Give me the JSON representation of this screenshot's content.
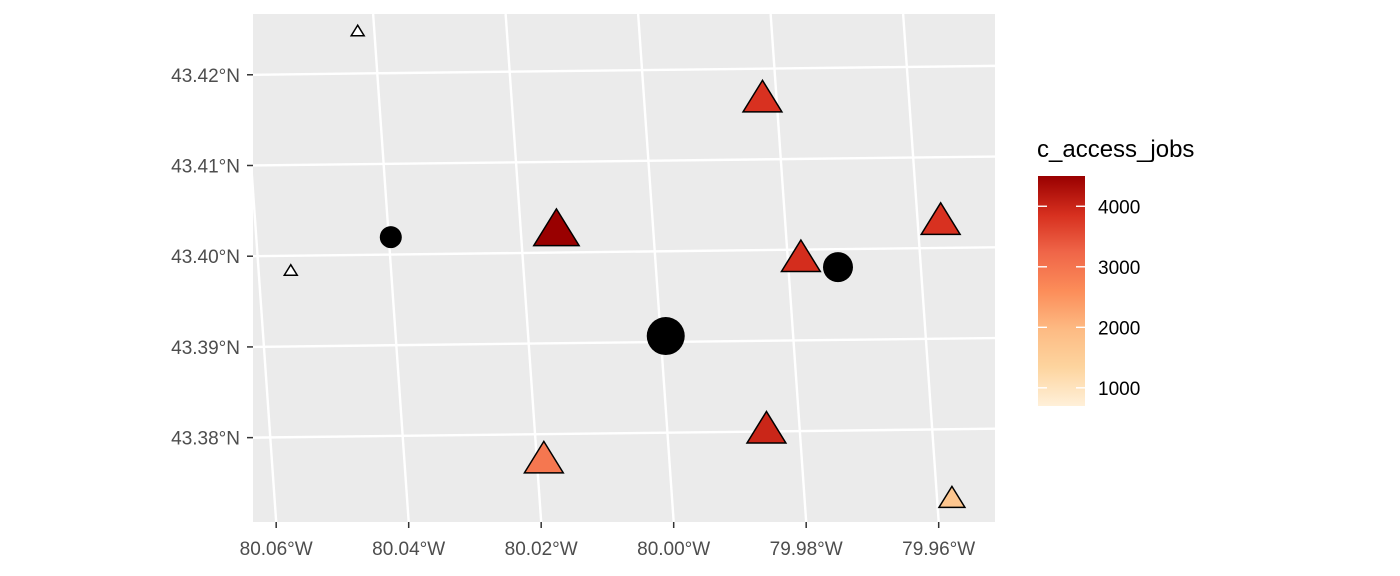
{
  "chart_data": {
    "type": "scatter",
    "title": "",
    "xlabel": "",
    "ylabel": "",
    "xlim": [
      -80.0635,
      -79.9515
    ],
    "ylim": [
      43.3707,
      43.4267
    ],
    "grid": true,
    "x_ticks": [
      -80.06,
      -80.04,
      -80.02,
      -80.0,
      -79.98,
      -79.96
    ],
    "x_tick_labels": [
      "80.06°W",
      "80.04°W",
      "80.02°W",
      "80.00°W",
      "79.98°W",
      "79.96°W"
    ],
    "y_ticks": [
      43.38,
      43.39,
      43.4,
      43.41,
      43.42
    ],
    "y_tick_labels": [
      "43.38°N",
      "43.39°N",
      "43.40°N",
      "43.41°N",
      "43.42°N"
    ],
    "legend": {
      "title": "c_access_jobs",
      "position": "right",
      "range": [
        700,
        4500
      ],
      "ticks": [
        1000,
        2000,
        3000,
        4000
      ],
      "tick_labels": [
        "1000",
        "2000",
        "3000",
        "4000"
      ]
    },
    "triangles": [
      {
        "x": -80.0578,
        "y": 43.3984,
        "size": "small",
        "value": null
      },
      {
        "x": -80.0477,
        "y": 43.4248,
        "size": "small",
        "value": null
      },
      {
        "x": -80.0177,
        "y": 43.4029,
        "size": "large",
        "value": 4500
      },
      {
        "x": -80.0196,
        "y": 43.3776,
        "size": "medium",
        "value": 2950
      },
      {
        "x": -79.9866,
        "y": 43.4174,
        "size": "medium",
        "value": 3850
      },
      {
        "x": -79.9808,
        "y": 43.3998,
        "size": "medium",
        "value": 3900
      },
      {
        "x": -79.986,
        "y": 43.3809,
        "size": "medium",
        "value": 4000
      },
      {
        "x": -79.9597,
        "y": 43.4039,
        "size": "medium",
        "value": 3850
      },
      {
        "x": -79.958,
        "y": 43.3733,
        "size": "small-medium",
        "value": 1700
      }
    ],
    "circles": [
      {
        "x": -80.0427,
        "y": 43.4021,
        "size": "small"
      },
      {
        "x": -79.9752,
        "y": 43.3988,
        "size": "medium"
      },
      {
        "x": -80.0012,
        "y": 43.3912,
        "size": "large"
      }
    ],
    "colors": {
      "panel": "#ebebeb",
      "grid": "#ffffff",
      "point_outline": "#000000",
      "scale": [
        "#fff0d9",
        "#fdd49e",
        "#fdbb84",
        "#fc8d59",
        "#ef6548",
        "#d7301f",
        "#990000"
      ]
    }
  }
}
